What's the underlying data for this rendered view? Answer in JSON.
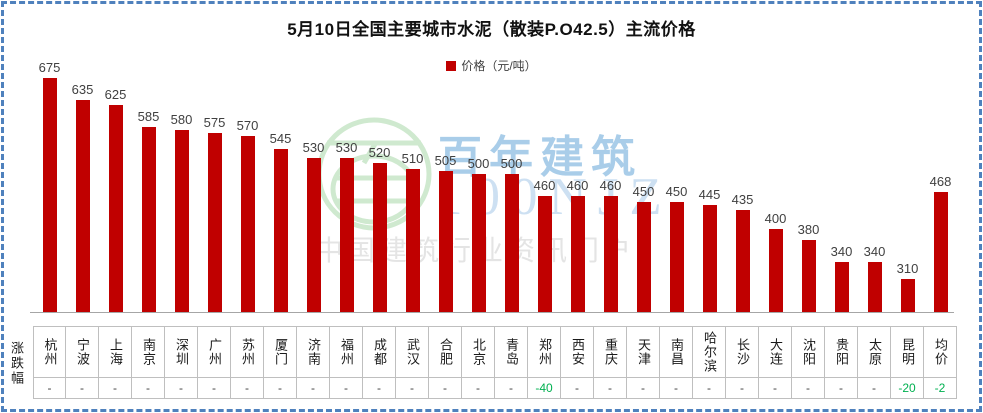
{
  "colors": {
    "bar": "#c00000",
    "negative_change": "#00b050",
    "flat_change": "#3f3f3f",
    "selection_border": "#4f81bd",
    "table_border": "#bfbfbf"
  },
  "watermark": {
    "logo_name": "hundred-year-building-logo",
    "brand": "百年建筑",
    "code": "100NJZ",
    "tagline": "中国建筑行业资讯门户"
  },
  "chart_data": {
    "type": "bar",
    "title": "5月10日全国主要城市水泥（散装P.O42.5）主流价格",
    "legend": [
      "价格（元/吨）"
    ],
    "legend_position": "top",
    "categories": [
      "杭州",
      "宁波",
      "上海",
      "南京",
      "深圳",
      "广州",
      "苏州",
      "厦门",
      "济南",
      "福州",
      "成都",
      "武汉",
      "合肥",
      "北京",
      "青岛",
      "郑州",
      "西安",
      "重庆",
      "天津",
      "南昌",
      "哈尔滨",
      "长沙",
      "大连",
      "沈阳",
      "贵阳",
      "太原",
      "昆明",
      "均价"
    ],
    "values": [
      675,
      635,
      625,
      585,
      580,
      575,
      570,
      545,
      530,
      530,
      520,
      510,
      505,
      500,
      500,
      460,
      460,
      460,
      450,
      450,
      445,
      435,
      400,
      380,
      340,
      340,
      310,
      468
    ],
    "changes": [
      "-",
      "-",
      "-",
      "-",
      "-",
      "-",
      "-",
      "-",
      "-",
      "-",
      "-",
      "-",
      "-",
      "-",
      "-",
      "-40",
      "-",
      "-",
      "-",
      "-",
      "-",
      "-",
      "-",
      "-",
      "-",
      "-",
      "-20",
      "-2"
    ],
    "change_row_label": "涨跌幅",
    "xlabel": "",
    "ylabel": "",
    "ylim": [
      250,
      700
    ],
    "grid": false,
    "value_labels": true,
    "axes_hidden": true
  }
}
